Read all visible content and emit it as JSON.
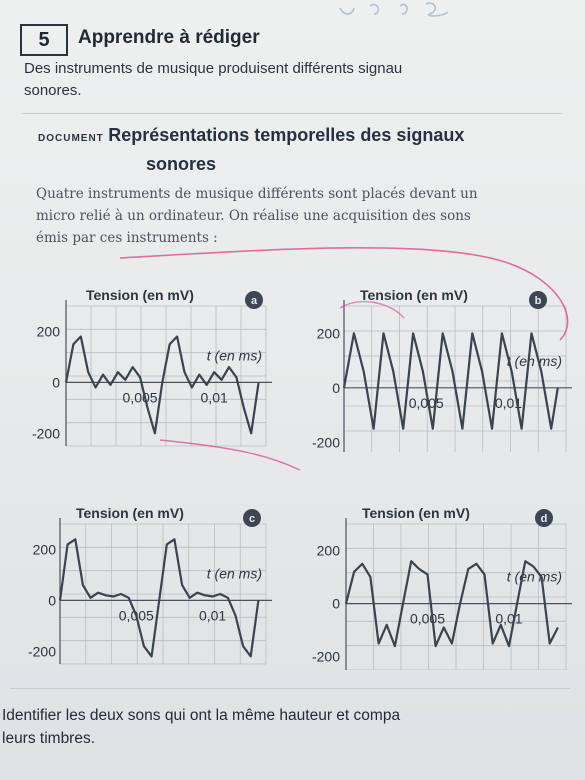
{
  "exercise": {
    "number": "5",
    "title": "Apprendre à rédiger"
  },
  "intro": {
    "line1": "Des instruments de musique produisent différents signau",
    "line2": "sonores."
  },
  "document": {
    "label": "DOCUMENT",
    "title_line1": "Représentations temporelles des signaux",
    "title_line2": "sonores",
    "text_line1": "Quatre instruments de musique différents sont placés devant un",
    "text_line2": "micro relié à un ordinateur. On réalise une acquisition des sons",
    "text_line3": "émis par ces instruments :"
  },
  "question": {
    "line1": "Identifier les deux sons qui ont la même hauteur et compa",
    "line2": "leurs timbres."
  },
  "colors": {
    "text": "#1e2733",
    "curve": "#3a4350",
    "grid": "#b9bec4",
    "pink_ink": "#d9438a",
    "badge": "#3c4654"
  },
  "chart_data": [
    {
      "id": "a",
      "type": "line",
      "ylabel": "Tension (en mV)",
      "xlabel": "t (en ms)",
      "yticks": [
        "200",
        "0",
        "-200"
      ],
      "xticks": [
        "0,005",
        "0,01"
      ],
      "ylim": [
        -250,
        300
      ],
      "xlim": [
        0,
        0.0135
      ],
      "period_ms": 0.0065,
      "series": [
        {
          "x": [
            0,
            0.0005,
            0.001,
            0.0015,
            0.002,
            0.0025,
            0.003,
            0.0035,
            0.004,
            0.0045,
            0.005,
            0.0055,
            0.006,
            0.0065,
            0.007,
            0.0075,
            0.008,
            0.0085,
            0.009,
            0.0095,
            0.01,
            0.0105,
            0.011,
            0.0115,
            0.012,
            0.0125,
            0.013
          ],
          "y": [
            0,
            150,
            180,
            40,
            -20,
            30,
            -10,
            40,
            10,
            60,
            20,
            -100,
            -200,
            0,
            150,
            180,
            40,
            -20,
            30,
            -10,
            40,
            10,
            60,
            20,
            -100,
            -200,
            0
          ]
        }
      ]
    },
    {
      "id": "b",
      "type": "line",
      "ylabel": "Tension (en mV)",
      "xlabel": "t (en ms)",
      "yticks": [
        "200",
        "0",
        "-200"
      ],
      "xticks": [
        "0,005",
        "0,01"
      ],
      "ylim": [
        -250,
        300
      ],
      "xlim": [
        0,
        0.0135
      ],
      "series": [
        {
          "x": [
            0,
            0.0006,
            0.0012,
            0.0018,
            0.0024,
            0.003,
            0.0036,
            0.0042,
            0.0048,
            0.0054,
            0.006,
            0.0066,
            0.0072,
            0.0078,
            0.0084,
            0.009,
            0.0096,
            0.0102,
            0.0108,
            0.0114,
            0.012,
            0.0126,
            0.013
          ],
          "y": [
            0,
            200,
            60,
            -150,
            200,
            60,
            -150,
            200,
            60,
            -150,
            200,
            60,
            -150,
            200,
            60,
            -150,
            200,
            60,
            -150,
            200,
            60,
            -150,
            0
          ]
        }
      ]
    },
    {
      "id": "c",
      "type": "line",
      "ylabel": "Tension (en mV)",
      "xlabel": "t (en ms)",
      "yticks": [
        "200",
        "0",
        "-200"
      ],
      "xticks": [
        "0,005",
        "0,01"
      ],
      "ylim": [
        -250,
        300
      ],
      "xlim": [
        0,
        0.0135
      ],
      "series": [
        {
          "x": [
            0,
            0.0005,
            0.001,
            0.0015,
            0.002,
            0.0025,
            0.003,
            0.0035,
            0.004,
            0.0045,
            0.005,
            0.0055,
            0.006,
            0.0065,
            0.007,
            0.0075,
            0.008,
            0.0085,
            0.009,
            0.0095,
            0.01,
            0.0105,
            0.011,
            0.0115,
            0.012,
            0.0125,
            0.013
          ],
          "y": [
            0,
            220,
            240,
            60,
            10,
            30,
            20,
            15,
            25,
            10,
            -60,
            -180,
            -220,
            0,
            220,
            240,
            60,
            10,
            30,
            20,
            15,
            25,
            10,
            -60,
            -180,
            -220,
            0
          ]
        }
      ]
    },
    {
      "id": "d",
      "type": "line",
      "ylabel": "Tension (en mV)",
      "xlabel": "t (en ms)",
      "yticks": [
        "200",
        "0",
        "-200"
      ],
      "xticks": [
        "0,005",
        "0,01"
      ],
      "ylim": [
        -250,
        300
      ],
      "xlim": [
        0,
        0.0135
      ],
      "series": [
        {
          "x": [
            0,
            0.0005,
            0.001,
            0.0015,
            0.002,
            0.0025,
            0.003,
            0.0035,
            0.004,
            0.0045,
            0.005,
            0.0055,
            0.006,
            0.0065,
            0.007,
            0.0075,
            0.008,
            0.0085,
            0.009,
            0.0095,
            0.01,
            0.0105,
            0.011,
            0.0115,
            0.012,
            0.0125,
            0.013
          ],
          "y": [
            0,
            120,
            150,
            100,
            -150,
            -80,
            -160,
            0,
            160,
            130,
            110,
            -160,
            -90,
            -150,
            0,
            130,
            150,
            110,
            -150,
            -80,
            -160,
            0,
            160,
            140,
            100,
            -150,
            -90
          ]
        }
      ]
    }
  ]
}
